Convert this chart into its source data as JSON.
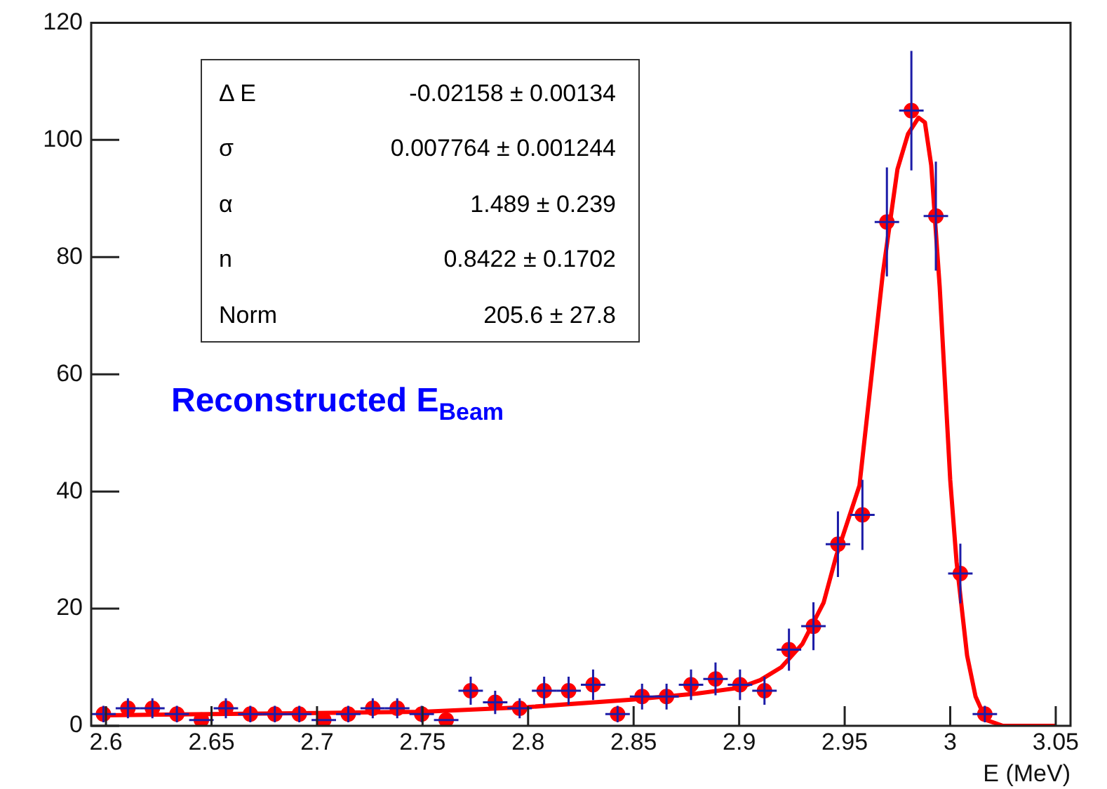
{
  "chart_data": {
    "type": "scatter",
    "xlabel": "E (MeV)",
    "xlim": [
      2.593,
      3.057
    ],
    "ylim": [
      0,
      120
    ],
    "xticks": [
      2.6,
      2.65,
      2.7,
      2.75,
      2.8,
      2.85,
      2.9,
      2.95,
      3,
      3.05
    ],
    "yticks": [
      0,
      20,
      40,
      60,
      80,
      100,
      120
    ],
    "grid": false,
    "legend": false,
    "annotations": [
      "Reconstructed E$_{Beam}$",
      "Δ E",
      "-0.02158 ± 0.00134",
      "σ",
      "0.007764 ± 0.001244",
      "α",
      "1.489 ± 0.239",
      "n",
      "0.8422 ± 0.1702",
      "Norm",
      "205.6 ± 27.8"
    ],
    "series": [
      {
        "marker": "circle",
        "color": "#ff0000",
        "x": [
          2.5988,
          2.6104,
          2.622,
          2.6336,
          2.6452,
          2.6568,
          2.6684,
          2.68,
          2.6916,
          2.7032,
          2.7148,
          2.7264,
          2.738,
          2.7496,
          2.7612,
          2.7728,
          2.7844,
          2.796,
          2.8076,
          2.8192,
          2.8308,
          2.8424,
          2.854,
          2.8656,
          2.8772,
          2.8888,
          2.9004,
          2.912,
          2.9236,
          2.9352,
          2.9468,
          2.9584,
          2.97,
          2.9816,
          2.9932,
          3.0048,
          3.0164
        ],
        "values": [
          2,
          3,
          3,
          2,
          1,
          3,
          2,
          2,
          2,
          1,
          2,
          3,
          3,
          2,
          1,
          6,
          4,
          3,
          6,
          6,
          7,
          2,
          5,
          5,
          7,
          8,
          7,
          6,
          13,
          17,
          31,
          36,
          86,
          105,
          87,
          26,
          2
        ],
        "errors": [
          1.4,
          1.7,
          1.7,
          1.4,
          null,
          1.7,
          1.4,
          1.4,
          1.4,
          null,
          1.4,
          1.7,
          1.7,
          1.4,
          null,
          2.4,
          2,
          1.7,
          2.4,
          2.4,
          2.6,
          1.4,
          2.2,
          2.2,
          2.6,
          2.8,
          2.6,
          2.4,
          3.6,
          4.1,
          5.6,
          6,
          9.3,
          10.2,
          9.3,
          5.1,
          1.4
        ],
        "xerrors": [
          0.0058,
          0.0058,
          0.0058,
          0.0058,
          0.0058,
          0.0058,
          0.0058,
          0.0058,
          0.0058,
          0.0058,
          0.0058,
          0.0058,
          0.0058,
          0.0058,
          0.0058,
          0.0058,
          0.0058,
          0.0058,
          0.0058,
          0.0058,
          0.0058,
          0.0058,
          0.0058,
          0.0058,
          0.0058,
          0.0058,
          0.0058,
          0.0058,
          0.0058,
          0.0058,
          0.0058,
          0.0058,
          0.0058,
          0.0058,
          0.0058,
          0.0058,
          0.0058
        ]
      },
      {
        "type": "line",
        "color": "#ff0000",
        "x": [
          2.6,
          2.65,
          2.7,
          2.75,
          2.8,
          2.85,
          2.88,
          2.9,
          2.91,
          2.92,
          2.93,
          2.94,
          2.946,
          2.957,
          2.968,
          2.975,
          2.98,
          2.985,
          2.988,
          2.991,
          2.995,
          3.0,
          3.003,
          3.008,
          3.012,
          3.017,
          3.025,
          3.05
        ],
        "values": [
          1.8,
          2.0,
          2.2,
          2.4,
          3.2,
          4.5,
          5.5,
          6.5,
          7.8,
          10,
          14,
          21,
          29,
          41,
          77,
          95,
          101,
          103.8,
          103,
          95.7,
          75,
          42,
          28,
          12,
          5,
          1,
          0,
          0
        ]
      }
    ]
  }
}
